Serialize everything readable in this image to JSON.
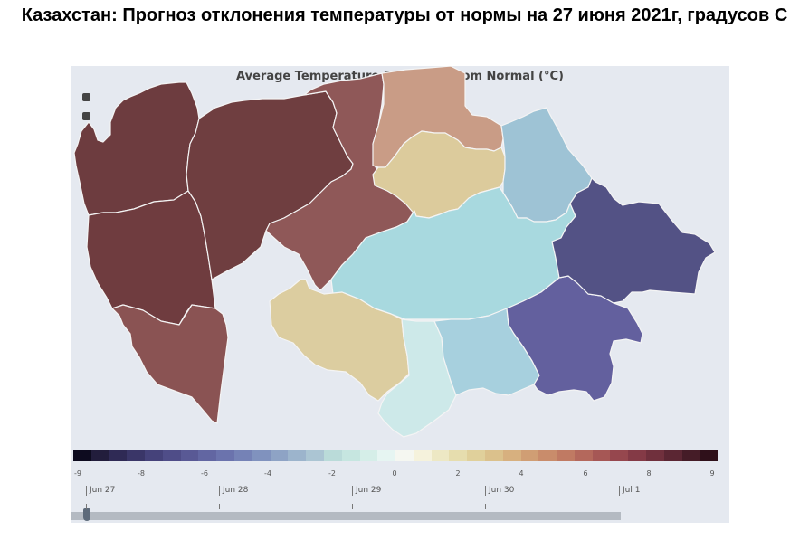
{
  "page_title": "Казахстан: Прогноз отклонения температуры от нормы на 27 июня 2021г, градусов С",
  "map": {
    "title": "Average Temperature Deviation from Normal (°C)",
    "regions": [
      {
        "id": "west-kazakhstan",
        "color": "#6d3c3f"
      },
      {
        "id": "atyrau",
        "color": "#6f3c3f"
      },
      {
        "id": "aktobe",
        "color": "#6f3e40"
      },
      {
        "id": "mangystau",
        "color": "#8a5353"
      },
      {
        "id": "kostanay",
        "color": "#8f5858"
      },
      {
        "id": "north-kazakhstan",
        "color": "#c99c86"
      },
      {
        "id": "akmola",
        "color": "#dccb9c"
      },
      {
        "id": "pavlodar",
        "color": "#9ec3d5"
      },
      {
        "id": "karaganda",
        "color": "#a8d9df"
      },
      {
        "id": "kyzylorda",
        "color": "#dccda0"
      },
      {
        "id": "turkestan",
        "color": "#cde9e9"
      },
      {
        "id": "zhambyl",
        "color": "#a7d0de"
      },
      {
        "id": "almaty",
        "color": "#63609e"
      },
      {
        "id": "east-kazakhstan",
        "color": "#535285"
      }
    ]
  },
  "colorbar": {
    "colors": [
      "#0d0b1f",
      "#221d3c",
      "#2f2a55",
      "#3a3668",
      "#45427a",
      "#4f4d88",
      "#595995",
      "#6266a2",
      "#6b73ad",
      "#7582b6",
      "#8092be",
      "#8ea3c5",
      "#9cb4cc",
      "#abc5d3",
      "#badbd9",
      "#c6e6e0",
      "#d5eee8",
      "#e6f5f2",
      "#f5f7f1",
      "#f5f2dc",
      "#ede8c4",
      "#e6ddae",
      "#e0d09b",
      "#dbc18c",
      "#d7b07f",
      "#d09e74",
      "#c98c6b",
      "#c07a63",
      "#b4685c",
      "#a65755",
      "#96474e",
      "#843a46",
      "#70303d",
      "#5b2633",
      "#451c27",
      "#2f101a"
    ],
    "ticks": [
      "-9",
      "-8",
      "-6",
      "-4",
      "-2",
      "0",
      "2",
      "4",
      "6",
      "8",
      "9"
    ]
  },
  "slider": {
    "labels": [
      "Jun 27",
      "Jun 28",
      "Jun 29",
      "Jun 30",
      "Jul 1"
    ],
    "position": 0
  }
}
